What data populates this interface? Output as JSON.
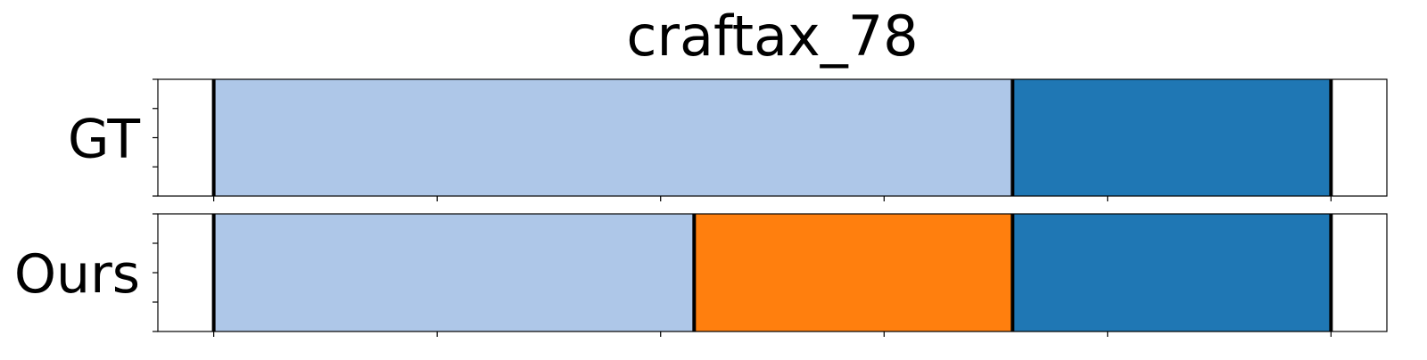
{
  "chart_data": {
    "type": "bar",
    "title": "craftax_78",
    "xlabel": "",
    "ylabel": "",
    "xlim": [
      -0.5,
      10.5
    ],
    "grid": false,
    "rows": [
      {
        "label": "GT",
        "segments": [
          {
            "start": 0,
            "end": 7.15,
            "color": "#aec7e8"
          },
          {
            "start": 7.15,
            "end": 10,
            "color": "#1f77b4"
          }
        ],
        "boundaries": [
          0,
          7.15,
          10
        ]
      },
      {
        "label": "Ours",
        "segments": [
          {
            "start": 0,
            "end": 4.3,
            "color": "#aec7e8"
          },
          {
            "start": 4.3,
            "end": 7.15,
            "color": "#ff7f0e"
          },
          {
            "start": 7.15,
            "end": 10,
            "color": "#1f77b4"
          }
        ],
        "boundaries": [
          0,
          4.3,
          7.15,
          10
        ]
      }
    ],
    "x_ticks": [
      0,
      2,
      4,
      6,
      8,
      10
    ],
    "y_ticks_per_panel": 5
  }
}
